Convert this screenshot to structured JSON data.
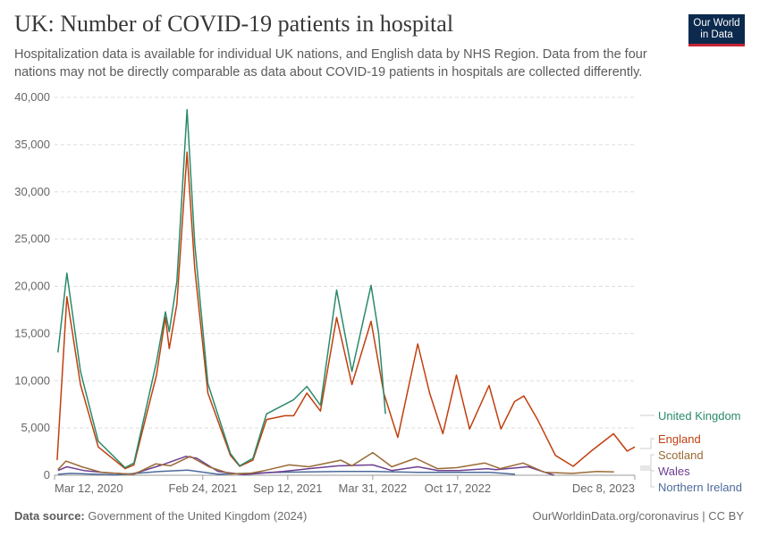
{
  "header": {
    "title": "UK: Number of COVID-19 patients in hospital",
    "subtitle": "Hospitalization data is available for individual UK nations, and English data by NHS Region. Data from the four nations may not be directly comparable as data about COVID-19 patients in hospitals are collected differently.",
    "logo": "Our World in Data"
  },
  "footer": {
    "source_label": "Data source:",
    "source": "Government of the United Kingdom (2024)",
    "url": "OurWorldinData.org/coronavirus | CC BY"
  },
  "chart_data": {
    "type": "line",
    "title": "UK: Number of COVID-19 patients in hospital",
    "xlabel": "",
    "ylabel": "",
    "xlim": [
      "2020-03-12",
      "2023-12-08"
    ],
    "ylim": [
      0,
      40000
    ],
    "grid": true,
    "legend": "right",
    "x_ticks": [
      "Mar 12, 2020",
      "Feb 24, 2021",
      "Sep 12, 2021",
      "Mar 31, 2022",
      "Oct 17, 2022",
      "Dec 8, 2023"
    ],
    "x_tick_dates": [
      "2020-03-12",
      "2021-02-24",
      "2021-09-12",
      "2022-03-31",
      "2022-10-17",
      "2023-12-08"
    ],
    "y_ticks": [
      0,
      5000,
      10000,
      15000,
      20000,
      25000,
      30000,
      35000,
      40000
    ],
    "y_tick_labels": [
      "0",
      "5,000",
      "10,000",
      "15,000",
      "20,000",
      "25,000",
      "30,000",
      "35,000",
      "40,000"
    ],
    "series": [
      {
        "name": "United Kingdom",
        "color": "#2a8a6a",
        "points": [
          [
            "2020-03-20",
            13000
          ],
          [
            "2020-04-10",
            21400
          ],
          [
            "2020-05-12",
            11000
          ],
          [
            "2020-06-23",
            3600
          ],
          [
            "2020-08-25",
            800
          ],
          [
            "2020-09-15",
            1300
          ],
          [
            "2020-11-07",
            12000
          ],
          [
            "2020-11-28",
            17300
          ],
          [
            "2020-12-07",
            15200
          ],
          [
            "2020-12-25",
            20500
          ],
          [
            "2021-01-18",
            38700
          ],
          [
            "2021-02-05",
            24500
          ],
          [
            "2021-03-08",
            9700
          ],
          [
            "2021-04-30",
            2300
          ],
          [
            "2021-05-22",
            1000
          ],
          [
            "2021-06-22",
            1800
          ],
          [
            "2021-07-24",
            6500
          ],
          [
            "2021-09-05",
            7500
          ],
          [
            "2021-09-26",
            8000
          ],
          [
            "2021-10-27",
            9400
          ],
          [
            "2021-11-28",
            7400
          ],
          [
            "2022-01-05",
            19600
          ],
          [
            "2022-02-10",
            11000
          ],
          [
            "2022-03-27",
            20100
          ],
          [
            "2022-04-14",
            15000
          ],
          [
            "2022-04-30",
            6500
          ]
        ]
      },
      {
        "name": "England",
        "color": "#c0400f",
        "points": [
          [
            "2020-03-18",
            1600
          ],
          [
            "2020-04-10",
            18900
          ],
          [
            "2020-05-12",
            9600
          ],
          [
            "2020-06-23",
            3000
          ],
          [
            "2020-08-25",
            700
          ],
          [
            "2020-09-15",
            1100
          ],
          [
            "2020-11-07",
            10600
          ],
          [
            "2020-11-28",
            16700
          ],
          [
            "2020-12-07",
            13400
          ],
          [
            "2020-12-25",
            18100
          ],
          [
            "2021-01-18",
            34200
          ],
          [
            "2021-02-05",
            21900
          ],
          [
            "2021-03-08",
            8700
          ],
          [
            "2021-04-30",
            2100
          ],
          [
            "2021-05-22",
            950
          ],
          [
            "2021-06-22",
            1600
          ],
          [
            "2021-07-24",
            5900
          ],
          [
            "2021-09-05",
            6300
          ],
          [
            "2021-09-26",
            6300
          ],
          [
            "2021-10-27",
            8700
          ],
          [
            "2021-11-28",
            6800
          ],
          [
            "2022-01-05",
            16700
          ],
          [
            "2022-02-10",
            9600
          ],
          [
            "2022-03-27",
            16300
          ],
          [
            "2022-04-26",
            8700
          ],
          [
            "2022-05-29",
            4000
          ],
          [
            "2022-07-15",
            13900
          ],
          [
            "2022-08-12",
            8700
          ],
          [
            "2022-09-12",
            4400
          ],
          [
            "2022-10-14",
            10600
          ],
          [
            "2022-11-14",
            4900
          ],
          [
            "2022-12-30",
            9500
          ],
          [
            "2023-01-27",
            4900
          ],
          [
            "2023-02-28",
            7800
          ],
          [
            "2023-03-22",
            8400
          ],
          [
            "2023-04-23",
            5900
          ],
          [
            "2023-06-04",
            2100
          ],
          [
            "2023-07-16",
            950
          ],
          [
            "2023-08-27",
            2550
          ],
          [
            "2023-10-19",
            4400
          ],
          [
            "2023-11-20",
            2550
          ],
          [
            "2023-12-08",
            3000
          ]
        ]
      },
      {
        "name": "Scotland",
        "color": "#9a6a35",
        "points": [
          [
            "2020-03-20",
            600
          ],
          [
            "2020-04-08",
            1500
          ],
          [
            "2020-05-15",
            900
          ],
          [
            "2020-07-01",
            300
          ],
          [
            "2020-09-15",
            100
          ],
          [
            "2020-11-05",
            1200
          ],
          [
            "2020-12-10",
            1000
          ],
          [
            "2021-01-25",
            2000
          ],
          [
            "2021-03-10",
            900
          ],
          [
            "2021-04-30",
            150
          ],
          [
            "2021-06-15",
            200
          ],
          [
            "2021-07-20",
            500
          ],
          [
            "2021-09-15",
            1100
          ],
          [
            "2021-11-01",
            900
          ],
          [
            "2022-01-15",
            1600
          ],
          [
            "2022-02-10",
            1000
          ],
          [
            "2022-03-31",
            2400
          ],
          [
            "2022-05-15",
            900
          ],
          [
            "2022-07-10",
            1800
          ],
          [
            "2022-08-30",
            700
          ],
          [
            "2022-10-15",
            800
          ],
          [
            "2022-12-20",
            1300
          ],
          [
            "2023-01-25",
            700
          ],
          [
            "2023-03-20",
            1300
          ],
          [
            "2023-05-10",
            300
          ],
          [
            "2023-07-15",
            200
          ],
          [
            "2023-09-10",
            400
          ],
          [
            "2023-10-20",
            350
          ]
        ]
      },
      {
        "name": "Wales",
        "color": "#6d3e91",
        "points": [
          [
            "2020-03-20",
            500
          ],
          [
            "2020-04-10",
            900
          ],
          [
            "2020-05-20",
            500
          ],
          [
            "2020-07-15",
            250
          ],
          [
            "2020-09-10",
            100
          ],
          [
            "2020-11-20",
            1100
          ],
          [
            "2021-01-15",
            2000
          ],
          [
            "2021-02-10",
            1800
          ],
          [
            "2021-04-01",
            400
          ],
          [
            "2021-06-01",
            80
          ],
          [
            "2021-09-01",
            400
          ],
          [
            "2021-11-01",
            700
          ],
          [
            "2022-01-10",
            1000
          ],
          [
            "2022-03-31",
            1100
          ],
          [
            "2022-05-15",
            500
          ],
          [
            "2022-07-15",
            900
          ],
          [
            "2022-09-01",
            500
          ],
          [
            "2022-10-20",
            500
          ],
          [
            "2022-12-25",
            700
          ],
          [
            "2023-01-15",
            600
          ],
          [
            "2023-04-01",
            900
          ],
          [
            "2023-06-01",
            0
          ]
        ]
      },
      {
        "name": "Northern Ireland",
        "color": "#4c6a9c",
        "points": [
          [
            "2020-03-20",
            100
          ],
          [
            "2020-04-20",
            200
          ],
          [
            "2020-08-01",
            30
          ],
          [
            "2020-11-15",
            400
          ],
          [
            "2021-01-20",
            550
          ],
          [
            "2021-04-01",
            100
          ],
          [
            "2021-08-15",
            300
          ],
          [
            "2022-01-15",
            400
          ],
          [
            "2022-04-01",
            400
          ],
          [
            "2022-07-15",
            300
          ],
          [
            "2023-01-01",
            300
          ],
          [
            "2023-03-01",
            100
          ]
        ]
      }
    ]
  }
}
